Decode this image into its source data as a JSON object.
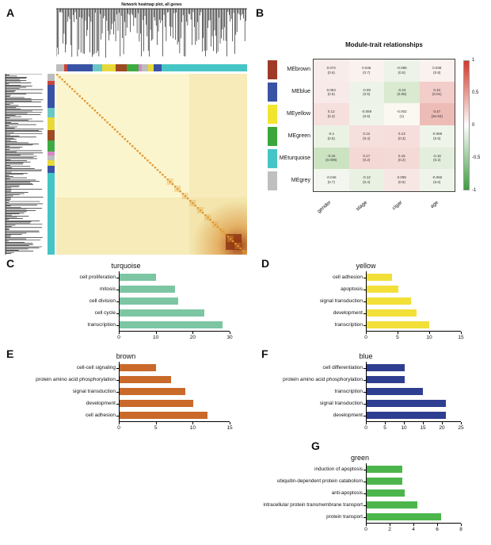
{
  "panels": {
    "a": "A",
    "b": "B",
    "c": "C",
    "d": "D",
    "e": "E",
    "f": "F",
    "g": "G"
  },
  "panel_a": {
    "title": "Network heatmap plot, all genes",
    "heatmap_bg": "#fbf5cd",
    "diag_color": "#df8f28",
    "hot_color": "#9c3a12",
    "strip_segments": [
      {
        "c": "#bdbdbd",
        "f": 0.04
      },
      {
        "c": "#c9463a",
        "f": 0.02
      },
      {
        "c": "#3953a4",
        "f": 0.13
      },
      {
        "c": "#69c8c3",
        "f": 0.05
      },
      {
        "c": "#e8d93a",
        "f": 0.07
      },
      {
        "c": "#9e4a22",
        "f": 0.06
      },
      {
        "c": "#3faa3f",
        "f": 0.06
      },
      {
        "c": "#d886c8",
        "f": 0.02
      },
      {
        "c": "#bdbdbd",
        "f": 0.03
      },
      {
        "c": "#e8d93a",
        "f": 0.03
      },
      {
        "c": "#3953a4",
        "f": 0.04
      },
      {
        "c": "#45c5c5",
        "f": 0.45
      }
    ]
  },
  "panel_b": {
    "title": "Module-trait relationships",
    "traits": [
      "gender",
      "stage",
      "cigar",
      "age"
    ],
    "scale_labels": [
      "1",
      "0.5",
      "0",
      "-0.5",
      "-1"
    ],
    "scale_top_color": "#d03a2b",
    "scale_bottom_color": "#3f9c3f",
    "rows": [
      {
        "module": "MEbrown",
        "color": "#9e3a26",
        "cells": [
          {
            "v": "0.072",
            "p": "(0.6)",
            "bg": "#f8ecea"
          },
          {
            "v": "0.046",
            "p": "(0.7)",
            "bg": "#faf2ef"
          },
          {
            "v": "-0.095",
            "p": "(0.5)",
            "bg": "#edf3e8"
          },
          {
            "v": "0.038",
            "p": "(0.8)",
            "bg": "#faf2ef"
          }
        ]
      },
      {
        "module": "MEblue",
        "color": "#3953a4",
        "cells": [
          {
            "v": "0.084",
            "p": "(0.5)",
            "bg": "#f8eae8"
          },
          {
            "v": "-0.09",
            "p": "(0.5)",
            "bg": "#edf3e8"
          },
          {
            "v": "-0.24",
            "p": "(0.08)",
            "bg": "#d9ead1"
          },
          {
            "v": "0.34",
            "p": "(0.01)",
            "bg": "#f2cdc9"
          }
        ]
      },
      {
        "module": "MEyellow",
        "color": "#f2e531",
        "cells": [
          {
            "v": "0.12",
            "p": "(0.4)",
            "bg": "#f6e0de"
          },
          {
            "v": "-0.069",
            "p": "(0.6)",
            "bg": "#eff4ea"
          },
          {
            "v": "-0.002",
            "p": "(1)",
            "bg": "#fbf8f2"
          },
          {
            "v": "0.47",
            "p": "(2e-04)",
            "bg": "#eebcb7"
          }
        ]
      },
      {
        "module": "MEgreen",
        "color": "#3ba73b",
        "cells": [
          {
            "v": "-0.1",
            "p": "(0.5)",
            "bg": "#eaf2e4"
          },
          {
            "v": "0.12",
            "p": "(0.4)",
            "bg": "#f6e0de"
          },
          {
            "v": "0.13",
            "p": "(0.3)",
            "bg": "#f5dedc"
          },
          {
            "v": "-0.068",
            "p": "(0.6)",
            "bg": "#eff4ea"
          }
        ]
      },
      {
        "module": "MEturquoise",
        "color": "#45c5c5",
        "cells": [
          {
            "v": "-0.34",
            "p": "(0.009)",
            "bg": "#cce3c2"
          },
          {
            "v": "0.17",
            "p": "(0.2)",
            "bg": "#f4d8d5"
          },
          {
            "v": "0.16",
            "p": "(0.2)",
            "bg": "#f4dad7"
          },
          {
            "v": "-0.16",
            "p": "(0.2)",
            "bg": "#e4eedd"
          }
        ]
      },
      {
        "module": "MEgrey",
        "color": "#bfbfbf",
        "cells": [
          {
            "v": "-0.046",
            "p": "(0.7)",
            "bg": "#f3f6ee"
          },
          {
            "v": "-0.12",
            "p": "(0.4)",
            "bg": "#e8f1e2"
          },
          {
            "v": "0.095",
            "p": "(0.5)",
            "bg": "#f7e7e4"
          },
          {
            "v": "-0.066",
            "p": "(0.6)",
            "bg": "#eff4ea"
          }
        ]
      }
    ]
  },
  "chart_data": [
    {
      "type": "bar",
      "orientation": "horizontal",
      "title": "turquoise",
      "color": "#7cc6a3",
      "categories": [
        "cell proliferation",
        "mitosis",
        "cell division",
        "cell cycle",
        "transcription"
      ],
      "values": [
        10,
        15,
        16,
        23,
        28
      ],
      "xlim": [
        0,
        30
      ],
      "ticks": [
        0,
        10,
        20,
        30
      ]
    },
    {
      "type": "bar",
      "orientation": "horizontal",
      "title": "yellow",
      "color": "#f2e038",
      "categories": [
        "cell adhesion",
        "apoptosis",
        "signal transduction",
        "development",
        "transcription"
      ],
      "values": [
        4,
        5,
        7,
        8,
        10
      ],
      "xlim": [
        0,
        15
      ],
      "ticks": [
        0,
        5,
        10,
        15
      ]
    },
    {
      "type": "bar",
      "orientation": "horizontal",
      "title": "brown",
      "color": "#c9692a",
      "categories": [
        "cell-cell signaling",
        "protein amino acid phosphorylation",
        "signal transduction",
        "development",
        "cell adhesion"
      ],
      "values": [
        5,
        7,
        9,
        10,
        12
      ],
      "xlim": [
        0,
        15
      ],
      "ticks": [
        0,
        5,
        10,
        15
      ]
    },
    {
      "type": "bar",
      "orientation": "horizontal",
      "title": "blue",
      "color": "#2e3e90",
      "categories": [
        "cell differentiation",
        "protein amino acid phosphorylation",
        "transcription",
        "signal transduction",
        "development"
      ],
      "values": [
        10,
        10,
        15,
        21,
        21
      ],
      "xlim": [
        0,
        25
      ],
      "ticks": [
        0,
        5,
        10,
        15,
        20,
        25
      ]
    },
    {
      "type": "bar",
      "orientation": "horizontal",
      "title": "green",
      "color": "#4cb64c",
      "categories": [
        "induction of apoptosis",
        "ubiquitin-dependent protein catabolism",
        "anti-apoptosis",
        "intracellular protein transmembrane transport",
        "protein transport"
      ],
      "values": [
        3,
        3,
        3.2,
        4.3,
        6.3
      ],
      "xlim": [
        0,
        8
      ],
      "ticks": [
        0,
        2,
        4,
        6,
        8
      ]
    }
  ]
}
